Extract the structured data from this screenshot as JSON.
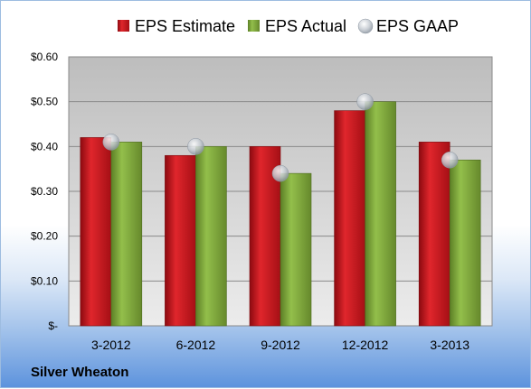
{
  "company_label": "Silver Wheaton",
  "colors": {
    "estimate": "#c0141b",
    "actual": "#77a136",
    "gaap": "#b0b8c2"
  },
  "chart_data": {
    "type": "bar",
    "categories": [
      "3-2012",
      "6-2012",
      "9-2012",
      "12-2012",
      "3-2013"
    ],
    "series": [
      {
        "name": "EPS Estimate",
        "kind": "bar",
        "values": [
          0.42,
          0.38,
          0.4,
          0.48,
          0.41
        ]
      },
      {
        "name": "EPS Actual",
        "kind": "bar",
        "values": [
          0.41,
          0.4,
          0.34,
          0.5,
          0.37
        ]
      },
      {
        "name": "EPS GAAP",
        "kind": "marker",
        "values": [
          0.41,
          0.4,
          0.34,
          0.5,
          0.37
        ]
      }
    ],
    "yticks": [
      0,
      0.1,
      0.2,
      0.3,
      0.4,
      0.5,
      0.6
    ],
    "ytick_labels": [
      "$-",
      "$0.10",
      "$0.20",
      "$0.30",
      "$0.40",
      "$0.50",
      "$0.60"
    ],
    "ylim": [
      0,
      0.6
    ],
    "grid": true,
    "legend": "top"
  }
}
